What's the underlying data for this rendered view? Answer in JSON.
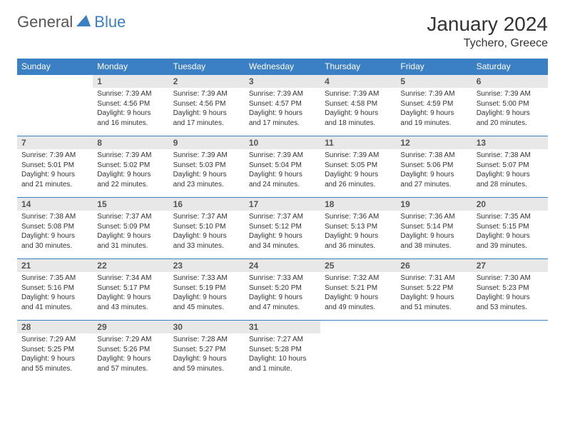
{
  "logo": {
    "text1": "General",
    "text2": "Blue"
  },
  "title": "January 2024",
  "location": "Tychero, Greece",
  "colors": {
    "header_bg": "#3b7fc4",
    "daynum_bg": "#e8e8e8",
    "border": "#3b7fc4"
  },
  "weekdays": [
    "Sunday",
    "Monday",
    "Tuesday",
    "Wednesday",
    "Thursday",
    "Friday",
    "Saturday"
  ],
  "weeks": [
    [
      null,
      {
        "n": "1",
        "sr": "Sunrise: 7:39 AM",
        "ss": "Sunset: 4:56 PM",
        "d1": "Daylight: 9 hours",
        "d2": "and 16 minutes."
      },
      {
        "n": "2",
        "sr": "Sunrise: 7:39 AM",
        "ss": "Sunset: 4:56 PM",
        "d1": "Daylight: 9 hours",
        "d2": "and 17 minutes."
      },
      {
        "n": "3",
        "sr": "Sunrise: 7:39 AM",
        "ss": "Sunset: 4:57 PM",
        "d1": "Daylight: 9 hours",
        "d2": "and 17 minutes."
      },
      {
        "n": "4",
        "sr": "Sunrise: 7:39 AM",
        "ss": "Sunset: 4:58 PM",
        "d1": "Daylight: 9 hours",
        "d2": "and 18 minutes."
      },
      {
        "n": "5",
        "sr": "Sunrise: 7:39 AM",
        "ss": "Sunset: 4:59 PM",
        "d1": "Daylight: 9 hours",
        "d2": "and 19 minutes."
      },
      {
        "n": "6",
        "sr": "Sunrise: 7:39 AM",
        "ss": "Sunset: 5:00 PM",
        "d1": "Daylight: 9 hours",
        "d2": "and 20 minutes."
      }
    ],
    [
      {
        "n": "7",
        "sr": "Sunrise: 7:39 AM",
        "ss": "Sunset: 5:01 PM",
        "d1": "Daylight: 9 hours",
        "d2": "and 21 minutes."
      },
      {
        "n": "8",
        "sr": "Sunrise: 7:39 AM",
        "ss": "Sunset: 5:02 PM",
        "d1": "Daylight: 9 hours",
        "d2": "and 22 minutes."
      },
      {
        "n": "9",
        "sr": "Sunrise: 7:39 AM",
        "ss": "Sunset: 5:03 PM",
        "d1": "Daylight: 9 hours",
        "d2": "and 23 minutes."
      },
      {
        "n": "10",
        "sr": "Sunrise: 7:39 AM",
        "ss": "Sunset: 5:04 PM",
        "d1": "Daylight: 9 hours",
        "d2": "and 24 minutes."
      },
      {
        "n": "11",
        "sr": "Sunrise: 7:39 AM",
        "ss": "Sunset: 5:05 PM",
        "d1": "Daylight: 9 hours",
        "d2": "and 26 minutes."
      },
      {
        "n": "12",
        "sr": "Sunrise: 7:38 AM",
        "ss": "Sunset: 5:06 PM",
        "d1": "Daylight: 9 hours",
        "d2": "and 27 minutes."
      },
      {
        "n": "13",
        "sr": "Sunrise: 7:38 AM",
        "ss": "Sunset: 5:07 PM",
        "d1": "Daylight: 9 hours",
        "d2": "and 28 minutes."
      }
    ],
    [
      {
        "n": "14",
        "sr": "Sunrise: 7:38 AM",
        "ss": "Sunset: 5:08 PM",
        "d1": "Daylight: 9 hours",
        "d2": "and 30 minutes."
      },
      {
        "n": "15",
        "sr": "Sunrise: 7:37 AM",
        "ss": "Sunset: 5:09 PM",
        "d1": "Daylight: 9 hours",
        "d2": "and 31 minutes."
      },
      {
        "n": "16",
        "sr": "Sunrise: 7:37 AM",
        "ss": "Sunset: 5:10 PM",
        "d1": "Daylight: 9 hours",
        "d2": "and 33 minutes."
      },
      {
        "n": "17",
        "sr": "Sunrise: 7:37 AM",
        "ss": "Sunset: 5:12 PM",
        "d1": "Daylight: 9 hours",
        "d2": "and 34 minutes."
      },
      {
        "n": "18",
        "sr": "Sunrise: 7:36 AM",
        "ss": "Sunset: 5:13 PM",
        "d1": "Daylight: 9 hours",
        "d2": "and 36 minutes."
      },
      {
        "n": "19",
        "sr": "Sunrise: 7:36 AM",
        "ss": "Sunset: 5:14 PM",
        "d1": "Daylight: 9 hours",
        "d2": "and 38 minutes."
      },
      {
        "n": "20",
        "sr": "Sunrise: 7:35 AM",
        "ss": "Sunset: 5:15 PM",
        "d1": "Daylight: 9 hours",
        "d2": "and 39 minutes."
      }
    ],
    [
      {
        "n": "21",
        "sr": "Sunrise: 7:35 AM",
        "ss": "Sunset: 5:16 PM",
        "d1": "Daylight: 9 hours",
        "d2": "and 41 minutes."
      },
      {
        "n": "22",
        "sr": "Sunrise: 7:34 AM",
        "ss": "Sunset: 5:17 PM",
        "d1": "Daylight: 9 hours",
        "d2": "and 43 minutes."
      },
      {
        "n": "23",
        "sr": "Sunrise: 7:33 AM",
        "ss": "Sunset: 5:19 PM",
        "d1": "Daylight: 9 hours",
        "d2": "and 45 minutes."
      },
      {
        "n": "24",
        "sr": "Sunrise: 7:33 AM",
        "ss": "Sunset: 5:20 PM",
        "d1": "Daylight: 9 hours",
        "d2": "and 47 minutes."
      },
      {
        "n": "25",
        "sr": "Sunrise: 7:32 AM",
        "ss": "Sunset: 5:21 PM",
        "d1": "Daylight: 9 hours",
        "d2": "and 49 minutes."
      },
      {
        "n": "26",
        "sr": "Sunrise: 7:31 AM",
        "ss": "Sunset: 5:22 PM",
        "d1": "Daylight: 9 hours",
        "d2": "and 51 minutes."
      },
      {
        "n": "27",
        "sr": "Sunrise: 7:30 AM",
        "ss": "Sunset: 5:23 PM",
        "d1": "Daylight: 9 hours",
        "d2": "and 53 minutes."
      }
    ],
    [
      {
        "n": "28",
        "sr": "Sunrise: 7:29 AM",
        "ss": "Sunset: 5:25 PM",
        "d1": "Daylight: 9 hours",
        "d2": "and 55 minutes."
      },
      {
        "n": "29",
        "sr": "Sunrise: 7:29 AM",
        "ss": "Sunset: 5:26 PM",
        "d1": "Daylight: 9 hours",
        "d2": "and 57 minutes."
      },
      {
        "n": "30",
        "sr": "Sunrise: 7:28 AM",
        "ss": "Sunset: 5:27 PM",
        "d1": "Daylight: 9 hours",
        "d2": "and 59 minutes."
      },
      {
        "n": "31",
        "sr": "Sunrise: 7:27 AM",
        "ss": "Sunset: 5:28 PM",
        "d1": "Daylight: 10 hours",
        "d2": "and 1 minute."
      },
      null,
      null,
      null
    ]
  ]
}
